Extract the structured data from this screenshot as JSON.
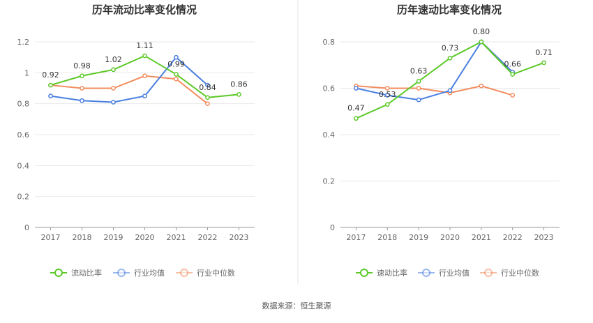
{
  "source": "数据来源：恒生聚源",
  "chart_data": [
    {
      "type": "line",
      "title": "历年流动比率变化情况",
      "categories": [
        "2017",
        "2018",
        "2019",
        "2020",
        "2021",
        "2022",
        "2023"
      ],
      "yticks": [
        "0",
        "0.2",
        "0.4",
        "0.6",
        "0.8",
        "1",
        "1.2"
      ],
      "ylim": [
        0,
        1.2
      ],
      "grid": true,
      "legend_position": "bottom",
      "series": [
        {
          "name": "流动比率",
          "color": "#5cc928",
          "values": [
            0.92,
            0.98,
            1.02,
            1.11,
            0.99,
            0.84,
            0.86
          ],
          "labels": [
            "0.92",
            "0.98",
            "1.02",
            "1.11",
            "0.99",
            "0.84",
            "0.86"
          ]
        },
        {
          "name": "行业均值",
          "color": "#4a7fe0",
          "values": [
            0.85,
            0.82,
            0.81,
            0.85,
            1.1,
            0.92,
            null
          ]
        },
        {
          "name": "行业中位数",
          "color": "#f28c5e",
          "values": [
            0.92,
            0.9,
            0.9,
            0.98,
            0.96,
            0.8,
            null
          ]
        }
      ]
    },
    {
      "type": "line",
      "title": "历年速动比率变化情况",
      "categories": [
        "2017",
        "2018",
        "2019",
        "2020",
        "2021",
        "2022",
        "2023"
      ],
      "yticks": [
        "0",
        "0.2",
        "0.4",
        "0.6",
        "0.8"
      ],
      "ylim": [
        0,
        0.8
      ],
      "grid": true,
      "legend_position": "bottom",
      "series": [
        {
          "name": "速动比率",
          "color": "#5cc928",
          "values": [
            0.47,
            0.53,
            0.63,
            0.73,
            0.8,
            0.66,
            0.71
          ],
          "labels": [
            "0.47",
            "0.53",
            "0.63",
            "0.73",
            "0.80",
            "0.66",
            "0.71"
          ]
        },
        {
          "name": "行业均值",
          "color": "#4a7fe0",
          "values": [
            0.6,
            0.57,
            0.55,
            0.59,
            0.8,
            0.67,
            null
          ]
        },
        {
          "name": "行业中位数",
          "color": "#f28c5e",
          "values": [
            0.61,
            0.6,
            0.6,
            0.58,
            0.61,
            0.57,
            null
          ]
        }
      ]
    }
  ]
}
